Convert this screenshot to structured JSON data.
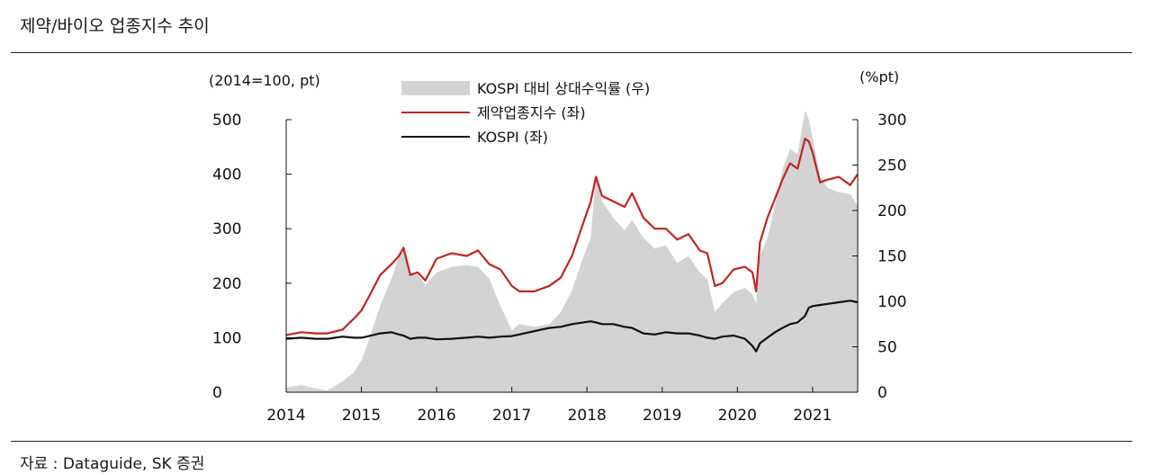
{
  "figure": {
    "title": "제약/바이오 업종지수 추이",
    "source": "자료 : Dataguide, SK 증권"
  },
  "chart_data": {
    "type": "line",
    "left_axis": {
      "unit_label": "(2014=100, pt)",
      "range": [
        0,
        500
      ],
      "ticks": [
        0,
        100,
        200,
        300,
        400,
        500
      ]
    },
    "right_axis": {
      "unit_label": "(%pt)",
      "range": [
        0,
        300
      ],
      "ticks": [
        0,
        50,
        100,
        150,
        200,
        250,
        300
      ]
    },
    "x_axis": {
      "range": [
        2014.0,
        2021.6
      ],
      "tick_labels": [
        "2014",
        "2015",
        "2016",
        "2017",
        "2018",
        "2019",
        "2020",
        "2021"
      ]
    },
    "grid": false,
    "legend_position": "top-center",
    "series": [
      {
        "name": "KOSPI 대비 상대수익률 (우)",
        "kind": "area",
        "axis": "right",
        "color": "#d3d3d3",
        "x": [
          2014.0,
          2014.2,
          2014.4,
          2014.55,
          2014.75,
          2014.9,
          2015.0,
          2015.1,
          2015.25,
          2015.4,
          2015.5,
          2015.56,
          2015.65,
          2015.75,
          2015.85,
          2016.0,
          2016.2,
          2016.4,
          2016.55,
          2016.7,
          2016.85,
          2017.0,
          2017.1,
          2017.3,
          2017.5,
          2017.65,
          2017.8,
          2017.95,
          2018.05,
          2018.12,
          2018.2,
          2018.35,
          2018.5,
          2018.6,
          2018.75,
          2018.9,
          2019.05,
          2019.2,
          2019.35,
          2019.5,
          2019.6,
          2019.7,
          2019.8,
          2019.95,
          2020.1,
          2020.2,
          2020.25,
          2020.3,
          2020.4,
          2020.5,
          2020.6,
          2020.7,
          2020.8,
          2020.9,
          2020.95,
          2021.0,
          2021.1,
          2021.2,
          2021.35,
          2021.5,
          2021.6
        ],
        "values": [
          5,
          8,
          4,
          2,
          12,
          22,
          35,
          58,
          95,
          125,
          150,
          158,
          128,
          130,
          118,
          132,
          138,
          140,
          138,
          125,
          95,
          68,
          75,
          72,
          75,
          88,
          112,
          148,
          170,
          240,
          210,
          192,
          178,
          190,
          170,
          158,
          162,
          142,
          150,
          132,
          125,
          88,
          98,
          110,
          115,
          108,
          98,
          150,
          170,
          205,
          245,
          268,
          262,
          310,
          300,
          280,
          238,
          225,
          220,
          218,
          205
        ]
      },
      {
        "name": "제약업종지수 (좌)",
        "kind": "line",
        "axis": "left",
        "color": "#c0261f",
        "x": [
          2014.0,
          2014.2,
          2014.4,
          2014.55,
          2014.75,
          2014.9,
          2015.0,
          2015.1,
          2015.25,
          2015.4,
          2015.5,
          2015.56,
          2015.65,
          2015.75,
          2015.85,
          2016.0,
          2016.2,
          2016.4,
          2016.55,
          2016.7,
          2016.85,
          2017.0,
          2017.1,
          2017.3,
          2017.5,
          2017.65,
          2017.8,
          2017.95,
          2018.05,
          2018.12,
          2018.2,
          2018.35,
          2018.5,
          2018.6,
          2018.75,
          2018.9,
          2019.05,
          2019.2,
          2019.35,
          2019.5,
          2019.6,
          2019.7,
          2019.8,
          2019.95,
          2020.1,
          2020.2,
          2020.25,
          2020.3,
          2020.4,
          2020.5,
          2020.6,
          2020.7,
          2020.8,
          2020.9,
          2020.95,
          2021.0,
          2021.1,
          2021.2,
          2021.35,
          2021.5,
          2021.6
        ],
        "values": [
          105,
          110,
          108,
          108,
          115,
          135,
          150,
          175,
          215,
          235,
          250,
          265,
          215,
          220,
          205,
          245,
          255,
          250,
          260,
          235,
          225,
          195,
          185,
          185,
          195,
          210,
          250,
          310,
          350,
          395,
          360,
          350,
          340,
          365,
          320,
          300,
          300,
          280,
          290,
          260,
          255,
          195,
          200,
          225,
          230,
          220,
          185,
          275,
          320,
          355,
          390,
          420,
          410,
          465,
          460,
          440,
          385,
          390,
          395,
          380,
          400
        ]
      },
      {
        "name": "KOSPI (좌)",
        "kind": "line",
        "axis": "left",
        "color": "#111111",
        "x": [
          2014.0,
          2014.2,
          2014.4,
          2014.55,
          2014.75,
          2014.9,
          2015.0,
          2015.1,
          2015.25,
          2015.4,
          2015.5,
          2015.56,
          2015.65,
          2015.75,
          2015.85,
          2016.0,
          2016.2,
          2016.4,
          2016.55,
          2016.7,
          2016.85,
          2017.0,
          2017.1,
          2017.3,
          2017.5,
          2017.65,
          2017.8,
          2017.95,
          2018.05,
          2018.12,
          2018.2,
          2018.35,
          2018.5,
          2018.6,
          2018.75,
          2018.9,
          2019.05,
          2019.2,
          2019.35,
          2019.5,
          2019.6,
          2019.7,
          2019.8,
          2019.95,
          2020.1,
          2020.2,
          2020.25,
          2020.3,
          2020.4,
          2020.5,
          2020.6,
          2020.7,
          2020.8,
          2020.9,
          2020.95,
          2021.0,
          2021.1,
          2021.2,
          2021.35,
          2021.5,
          2021.6
        ],
        "values": [
          98,
          100,
          98,
          98,
          102,
          100,
          100,
          103,
          108,
          110,
          106,
          104,
          98,
          100,
          100,
          97,
          98,
          100,
          102,
          100,
          102,
          103,
          106,
          112,
          118,
          120,
          125,
          128,
          130,
          128,
          125,
          125,
          120,
          118,
          108,
          106,
          110,
          108,
          108,
          104,
          100,
          98,
          102,
          104,
          98,
          85,
          75,
          90,
          100,
          110,
          118,
          125,
          128,
          140,
          155,
          158,
          160,
          162,
          165,
          168,
          165
        ]
      }
    ]
  }
}
